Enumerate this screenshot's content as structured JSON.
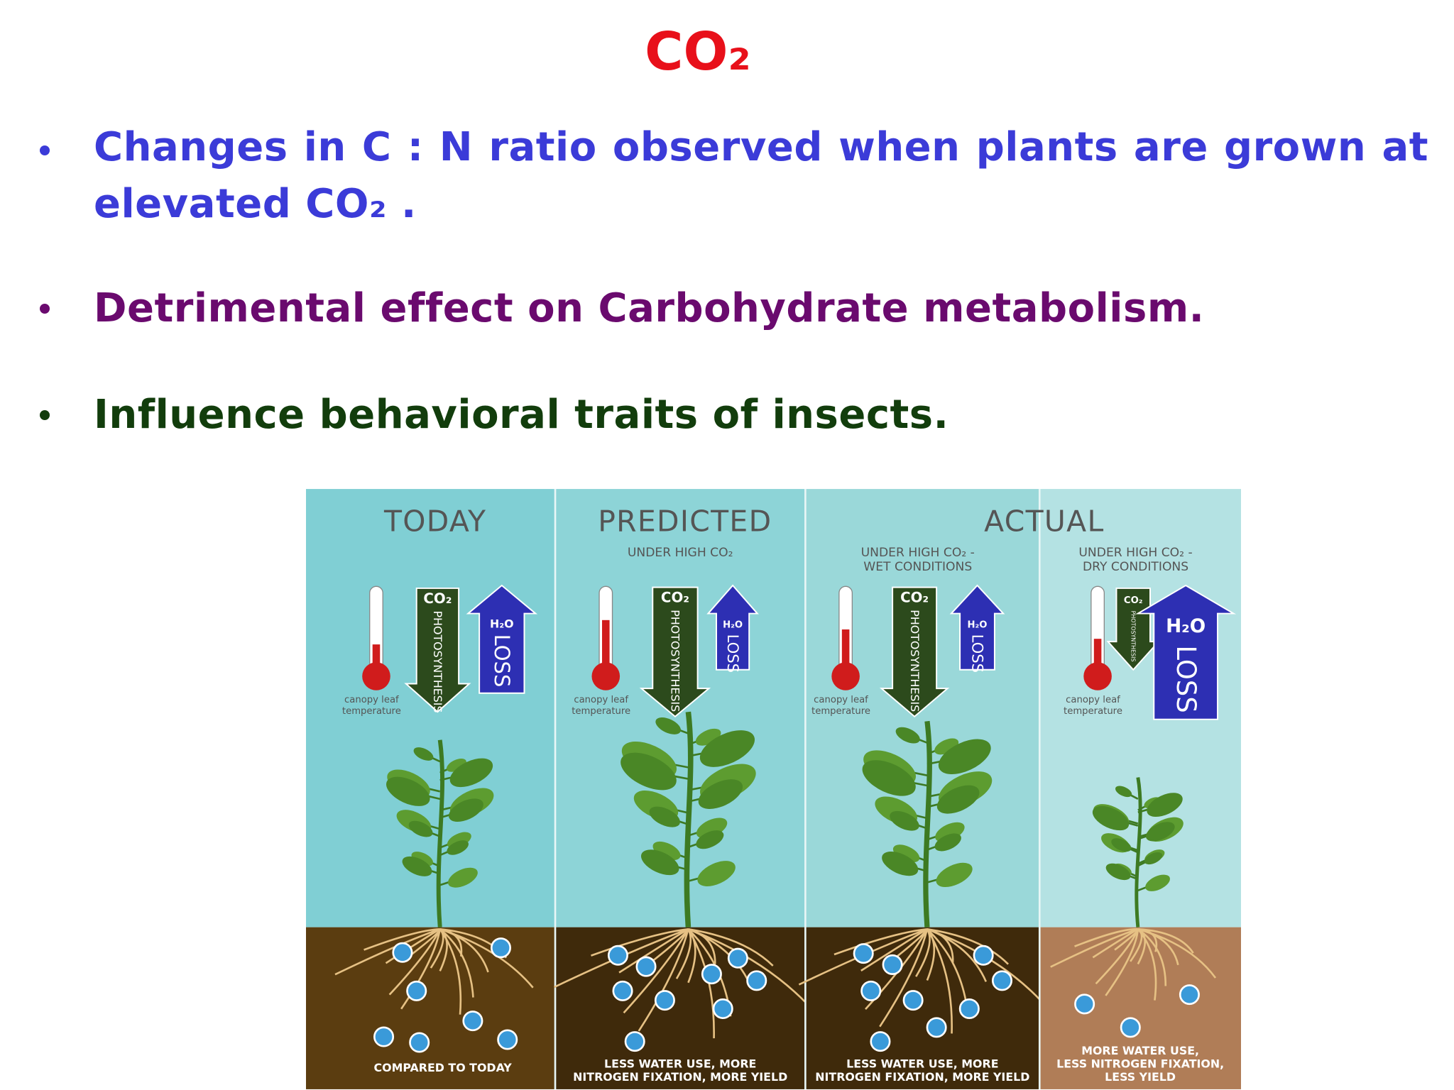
{
  "title": "CO₂",
  "bullets": [
    {
      "text": "Changes in C : N ratio observed when plants are grown at elevated CO₂ .",
      "color": "#3b3bd8"
    },
    {
      "text": "Detrimental effect on Carbohydrate metabolism.",
      "color": "#6a0a6e"
    },
    {
      "text": "Influence behavioral traits of insects.",
      "color": "#123d0c"
    }
  ],
  "figure": {
    "actual_heading": "ACTUAL",
    "panels": [
      {
        "heading": "TODAY",
        "co2_label": "CO₂",
        "photosynthesis": "PHOTOSYNTHESIS",
        "h2o_label": "H₂O",
        "loss_label": "LOSS",
        "thermo_label": [
          "canopy leaf",
          "temperature"
        ],
        "footer": [
          "COMPARED TO TODAY"
        ]
      },
      {
        "heading": "PREDICTED",
        "subheading": [
          "UNDER HIGH CO₂"
        ],
        "co2_label": "CO₂",
        "photosynthesis": "PHOTOSYNTHESIS",
        "h2o_label": "H₂O",
        "loss_label": "LOSS",
        "thermo_label": [
          "canopy leaf",
          "temperature"
        ],
        "footer": [
          "LESS WATER USE, MORE",
          "NITROGEN FIXATION, MORE YIELD"
        ]
      },
      {
        "subheading": [
          "UNDER HIGH CO₂ -",
          "WET CONDITIONS"
        ],
        "co2_label": "CO₂",
        "photosynthesis": "PHOTOSYNTHESIS",
        "h2o_label": "H₂O",
        "loss_label": "LOSS",
        "thermo_label": [
          "canopy leaf",
          "temperature"
        ],
        "footer": [
          "LESS WATER USE, MORE",
          "NITROGEN FIXATION, MORE YIELD"
        ]
      },
      {
        "subheading": [
          "UNDER HIGH CO₂ -",
          "DRY CONDITIONS"
        ],
        "co2_label": "CO₂",
        "photosynthesis": "PHOTOSYNTHESIS",
        "h2o_label": "H₂O",
        "loss_label": "LOSS",
        "thermo_label": [
          "canopy leaf",
          "temperature"
        ],
        "footer": [
          "MORE WATER USE,",
          "LESS NITROGEN FIXATION,",
          "LESS YIELD"
        ]
      }
    ]
  }
}
